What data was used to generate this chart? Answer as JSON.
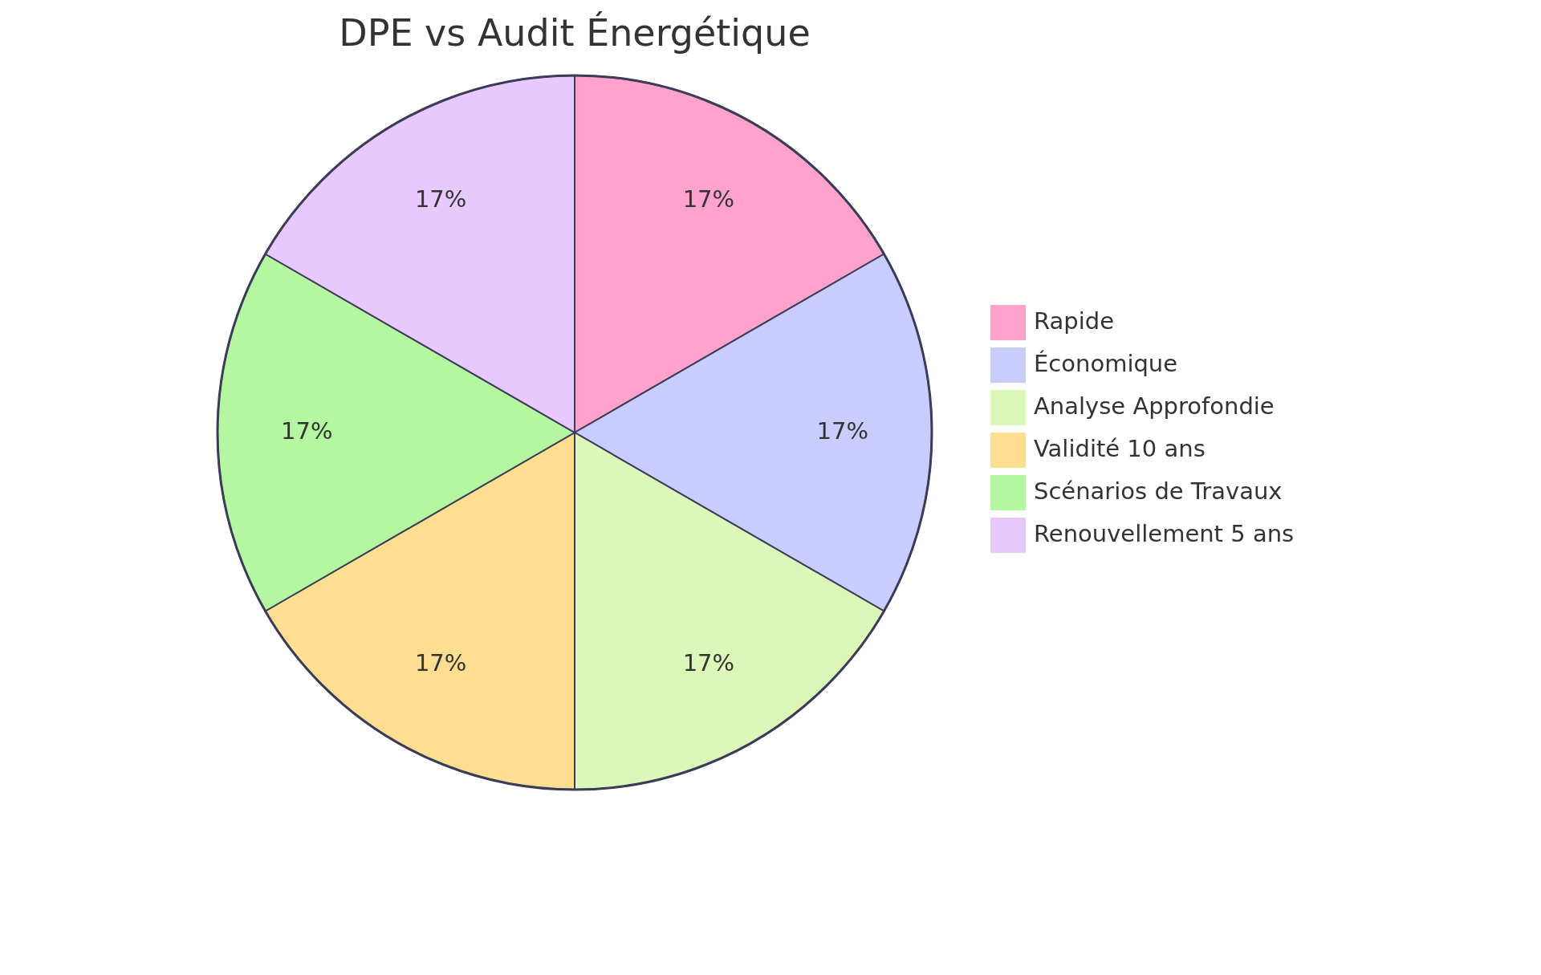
{
  "chart_data": {
    "type": "pie",
    "title": "DPE vs Audit Énergétique",
    "categories": [
      "Rapide",
      "Économique",
      "Analyse Approfondie",
      "Validité 10 ans",
      "Scénarios de Travaux",
      "Renouvellement 5 ans"
    ],
    "values": [
      16.67,
      16.67,
      16.67,
      16.67,
      16.67,
      16.67
    ],
    "value_labels": [
      "17%",
      "17%",
      "17%",
      "17%",
      "17%",
      "17%"
    ],
    "colors": [
      "#ffa3cc",
      "#c9ccff",
      "#dbf8b9",
      "#fede91",
      "#b3f7a0",
      "#e7c9fd"
    ],
    "legend": "right"
  }
}
